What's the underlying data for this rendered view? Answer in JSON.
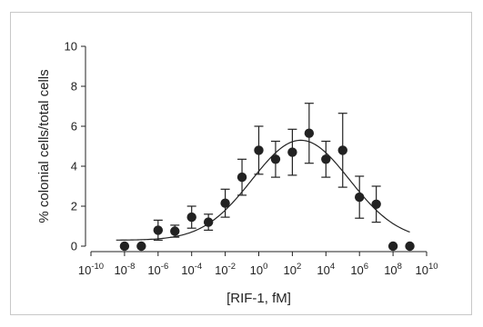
{
  "chart_data": {
    "type": "scatter",
    "xlabel": "[RIF-1, fM]",
    "ylabel": "% colonial cells/total cells",
    "x_scale": "log10",
    "xlim_exponent": [
      -10,
      10
    ],
    "ylim": [
      0,
      10
    ],
    "x_ticks": [
      {
        "base": "10",
        "exp": "-10"
      },
      {
        "base": "10",
        "exp": "-8"
      },
      {
        "base": "10",
        "exp": "-6"
      },
      {
        "base": "10",
        "exp": "-4"
      },
      {
        "base": "10",
        "exp": "-2"
      },
      {
        "base": "10",
        "exp": "0"
      },
      {
        "base": "10",
        "exp": "2"
      },
      {
        "base": "10",
        "exp": "4"
      },
      {
        "base": "10",
        "exp": "6"
      },
      {
        "base": "10",
        "exp": "8"
      },
      {
        "base": "10",
        "exp": "10"
      }
    ],
    "y_ticks": [
      "0",
      "2",
      "4",
      "6",
      "8",
      "10"
    ],
    "series": [
      {
        "points": [
          {
            "x": -8,
            "y": 0.0,
            "err": 0
          },
          {
            "x": -7,
            "y": 0.0,
            "err": 0
          },
          {
            "x": -6,
            "y": 0.8,
            "err": 0.5
          },
          {
            "x": -5,
            "y": 0.75,
            "err": 0.3
          },
          {
            "x": -4,
            "y": 1.45,
            "err": 0.55
          },
          {
            "x": -3,
            "y": 1.2,
            "err": 0.4
          },
          {
            "x": -2,
            "y": 2.15,
            "err": 0.7
          },
          {
            "x": -1,
            "y": 3.45,
            "err": 0.9
          },
          {
            "x": 0,
            "y": 4.8,
            "err": 1.2
          },
          {
            "x": 1,
            "y": 4.35,
            "err": 0.9
          },
          {
            "x": 2,
            "y": 4.7,
            "err": 1.15
          },
          {
            "x": 3,
            "y": 5.65,
            "err": 1.5
          },
          {
            "x": 4,
            "y": 4.35,
            "err": 0.9
          },
          {
            "x": 5,
            "y": 4.8,
            "err": 1.85
          },
          {
            "x": 6,
            "y": 2.45,
            "err": 1.05
          },
          {
            "x": 7,
            "y": 2.1,
            "err": 0.9
          },
          {
            "x": 8,
            "y": 0.0,
            "err": 0
          },
          {
            "x": 9,
            "y": 0.0,
            "err": 0
          }
        ]
      }
    ],
    "fit_curve": {
      "type": "gaussian-log",
      "amplitude": 5.0,
      "center_exp": 2.5,
      "sigma": 2.9,
      "baseline": 0.3
    },
    "grid": false,
    "colors": {
      "points": "#222222",
      "curve": "#222222",
      "axes": "#222222"
    }
  }
}
